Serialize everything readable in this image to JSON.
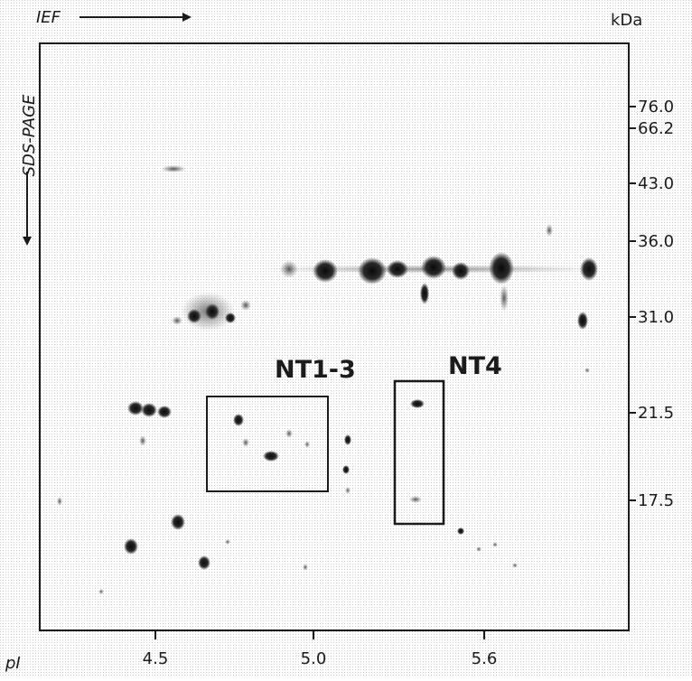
{
  "axes": {
    "top_left_label": "IEF",
    "vertical_label": "SDS-PAGE",
    "right_unit_label": "kDa",
    "bottom_left_label": "pI"
  },
  "mw_ticks": [
    "76.0",
    "66.2",
    "43.0",
    "36.0",
    "31.0",
    "21.5",
    "17.5"
  ],
  "pi_ticks": [
    "4.5",
    "5.0",
    "5.6"
  ],
  "annotations": {
    "box1_label": "NT1-3",
    "box2_label": "NT4"
  },
  "colors": {
    "background": "#ffffff",
    "stipple": "#d8d8d8",
    "ink": "#1b1b1b",
    "spot_dark": "#111111",
    "spot_mid": "#3a3a3a"
  }
}
